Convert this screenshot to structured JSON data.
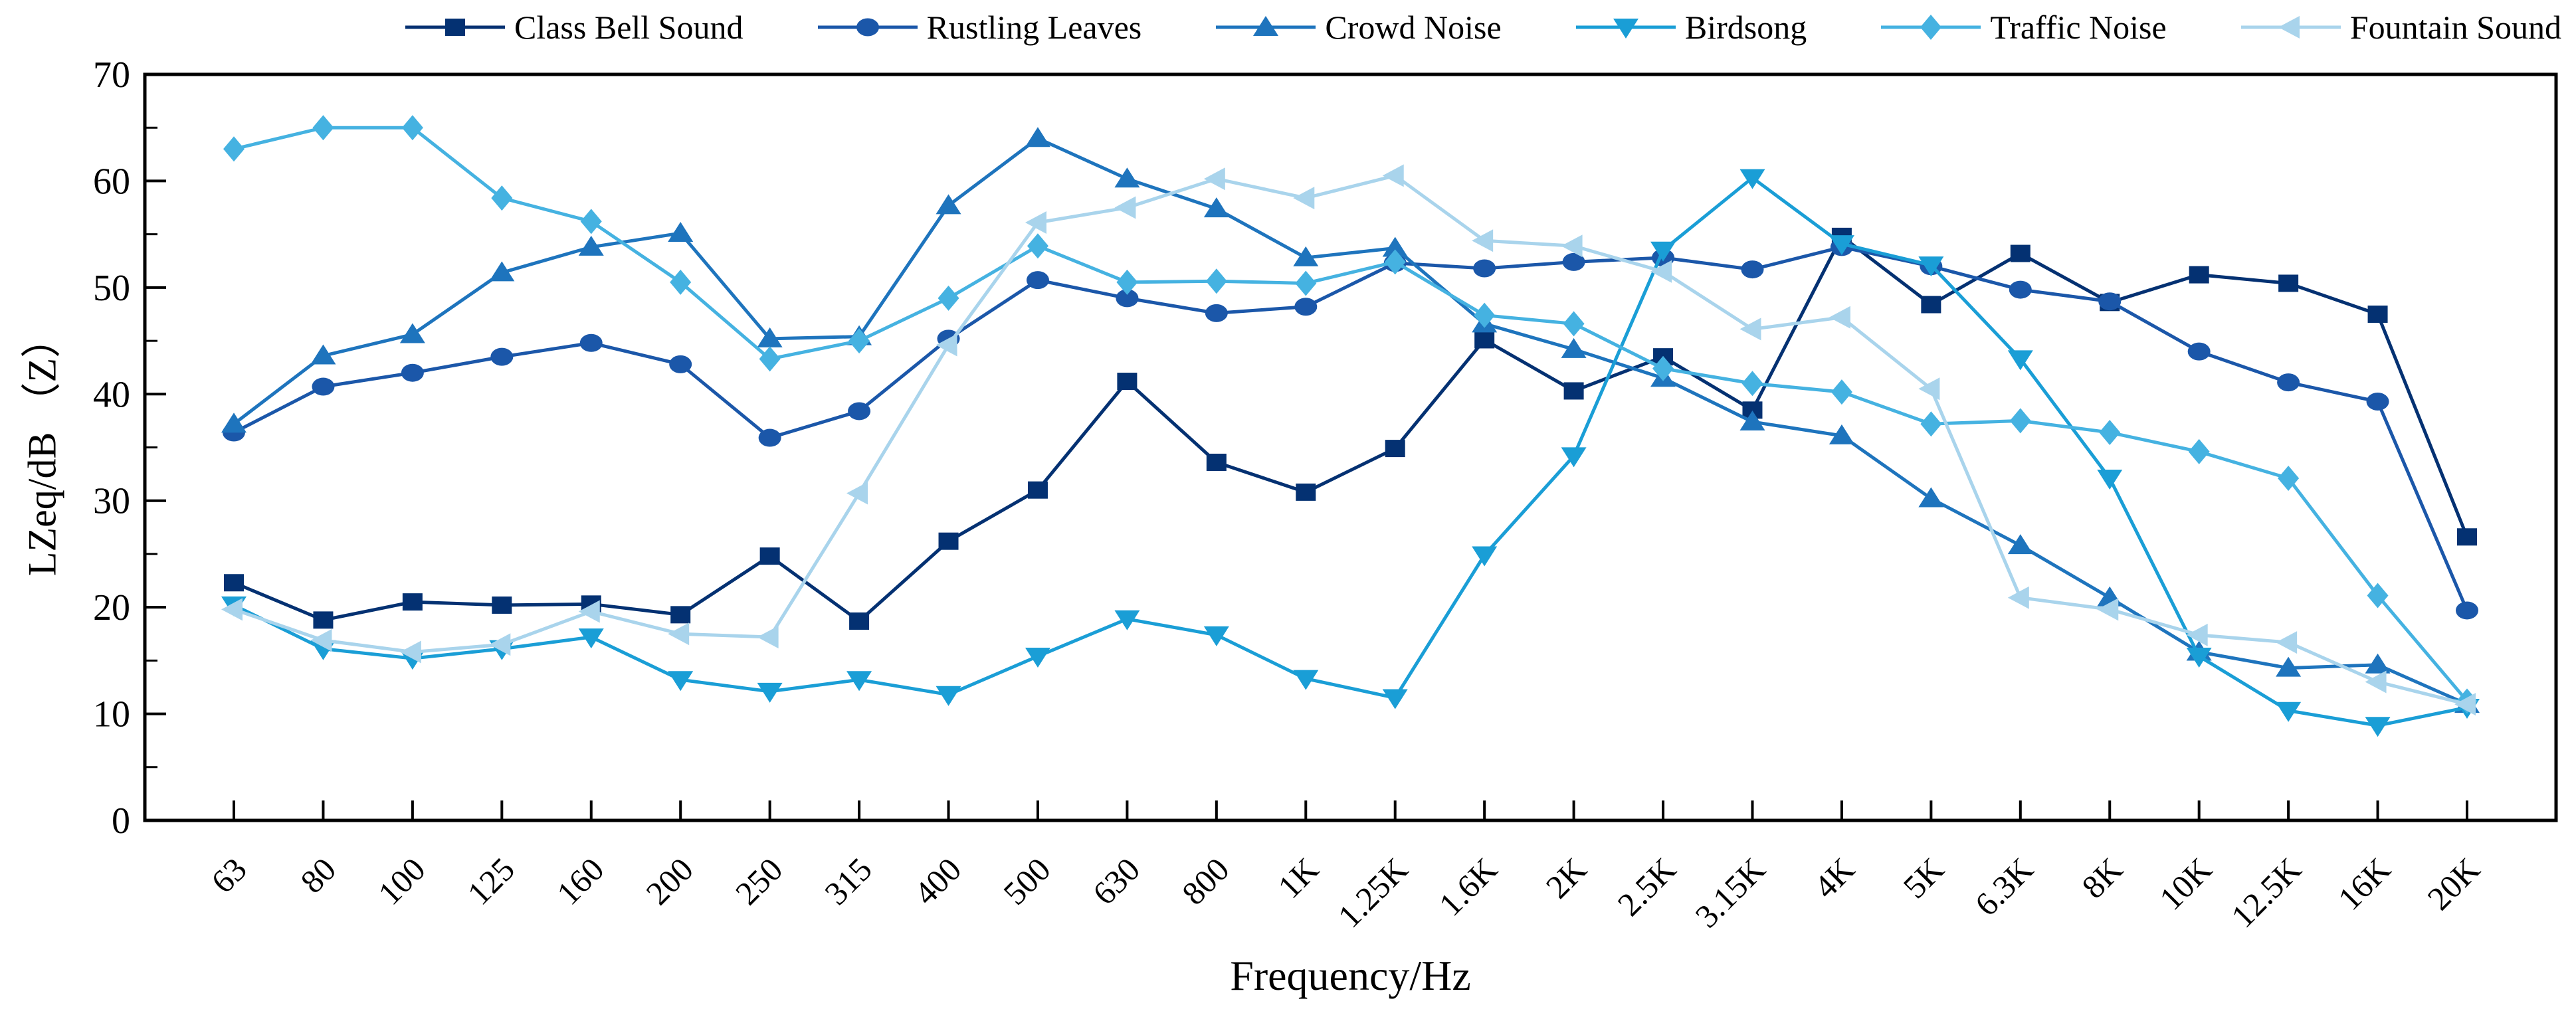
{
  "chart_data": {
    "type": "line",
    "title": "",
    "xlabel": "Frequency/Hz",
    "ylabel": "LZeq/dB （Z）",
    "ylim": [
      0,
      70
    ],
    "ytick_step": 10,
    "y_minor_step": 5,
    "yticks": [
      "0",
      "10",
      "20",
      "30",
      "40",
      "50",
      "60",
      "70"
    ],
    "grid": false,
    "legend_position": "top",
    "x_tick_rotation_deg": 45,
    "categories": [
      "63",
      "80",
      "100",
      "125",
      "160",
      "200",
      "250",
      "315",
      "400",
      "500",
      "630",
      "800",
      "1K",
      "1.25K",
      "1.6K",
      "2K",
      "2.5K",
      "3.15K",
      "4K",
      "5K",
      "6.3K",
      "8K",
      "10K",
      "12.5K",
      "16K",
      "20K"
    ],
    "series": [
      {
        "name": "Class Bell Sound",
        "marker": "square",
        "color": "#043172",
        "values": [
          22.3,
          18.8,
          20.5,
          20.2,
          20.3,
          19.3,
          24.8,
          18.7,
          26.2,
          31.0,
          41.2,
          33.6,
          30.8,
          34.9,
          45.1,
          40.3,
          43.5,
          38.5,
          54.8,
          48.4,
          53.2,
          48.6,
          51.2,
          50.4,
          47.5,
          26.6
        ]
      },
      {
        "name": "Rustling Leaves",
        "marker": "circle",
        "color": "#1b57a9",
        "values": [
          36.4,
          40.7,
          42.0,
          43.5,
          44.8,
          42.8,
          35.9,
          38.4,
          45.2,
          50.7,
          49.0,
          47.6,
          48.2,
          52.3,
          51.8,
          52.4,
          52.8,
          51.7,
          53.8,
          52.0,
          49.8,
          48.7,
          44.0,
          41.1,
          39.3,
          19.7
        ]
      },
      {
        "name": "Crowd Noise",
        "marker": "triangle-up",
        "color": "#1e74bd",
        "values": [
          37.2,
          43.6,
          45.6,
          51.4,
          53.8,
          55.1,
          45.2,
          45.4,
          57.7,
          64.0,
          60.2,
          57.4,
          52.8,
          53.7,
          46.6,
          44.2,
          41.5,
          37.4,
          36.1,
          30.2,
          25.8,
          20.9,
          15.8,
          14.3,
          14.6,
          10.9
        ]
      },
      {
        "name": "Birdsong",
        "marker": "triangle-down",
        "color": "#1a9ed6",
        "values": [
          20.2,
          16.1,
          15.2,
          16.1,
          17.2,
          13.2,
          12.1,
          13.2,
          11.8,
          15.4,
          18.9,
          17.4,
          13.3,
          11.5,
          24.9,
          34.2,
          53.5,
          60.3,
          54.1,
          52.1,
          43.3,
          32.1,
          15.4,
          10.3,
          8.9,
          10.6
        ]
      },
      {
        "name": "Traffic Noise",
        "marker": "diamond",
        "color": "#45b2e1",
        "values": [
          63.0,
          65.0,
          65.0,
          58.4,
          56.2,
          50.5,
          43.3,
          45.0,
          49.0,
          53.9,
          50.5,
          50.6,
          50.4,
          52.4,
          47.4,
          46.6,
          42.4,
          41.0,
          40.2,
          37.2,
          37.5,
          36.4,
          34.6,
          32.1,
          21.1,
          11.2
        ]
      },
      {
        "name": "Fountain Sound",
        "marker": "triangle-left",
        "color": "#a9d4ec",
        "values": [
          19.8,
          16.9,
          15.8,
          16.5,
          19.6,
          17.5,
          17.2,
          30.7,
          44.6,
          56.1,
          57.5,
          60.2,
          58.4,
          60.5,
          54.4,
          53.9,
          51.5,
          46.1,
          47.2,
          40.5,
          20.9,
          19.8,
          17.4,
          16.7,
          13.0,
          10.9
        ]
      }
    ]
  }
}
